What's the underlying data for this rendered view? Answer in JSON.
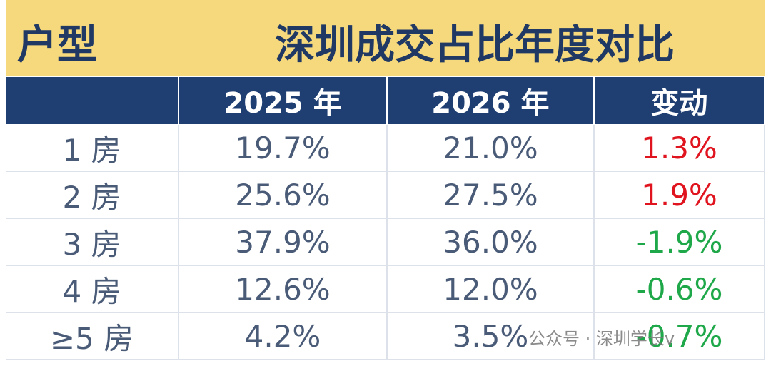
{
  "title": {
    "left": "户型",
    "main": "深圳成交占比年度对比"
  },
  "table": {
    "header": [
      "",
      "2025 年",
      "2026 年",
      "变动"
    ],
    "rows": [
      [
        "1 房",
        "19.7%",
        "21.0%",
        "1.3%"
      ],
      [
        "2 房",
        "25.6%",
        "27.5%",
        "1.9%"
      ],
      [
        "3 房",
        "37.9%",
        "36.0%",
        "-1.9%"
      ],
      [
        "4 房",
        "12.6%",
        "12.0%",
        "-0.6%"
      ],
      [
        "≥5 房",
        "4.2%",
        "3.5%",
        "-0.7%"
      ]
    ],
    "change_colors": [
      "#e0141e",
      "#e0141e",
      "#1fa84a",
      "#1fa84a",
      "#1fa84a"
    ]
  },
  "watermark": "公众号 · 深圳学长v"
}
